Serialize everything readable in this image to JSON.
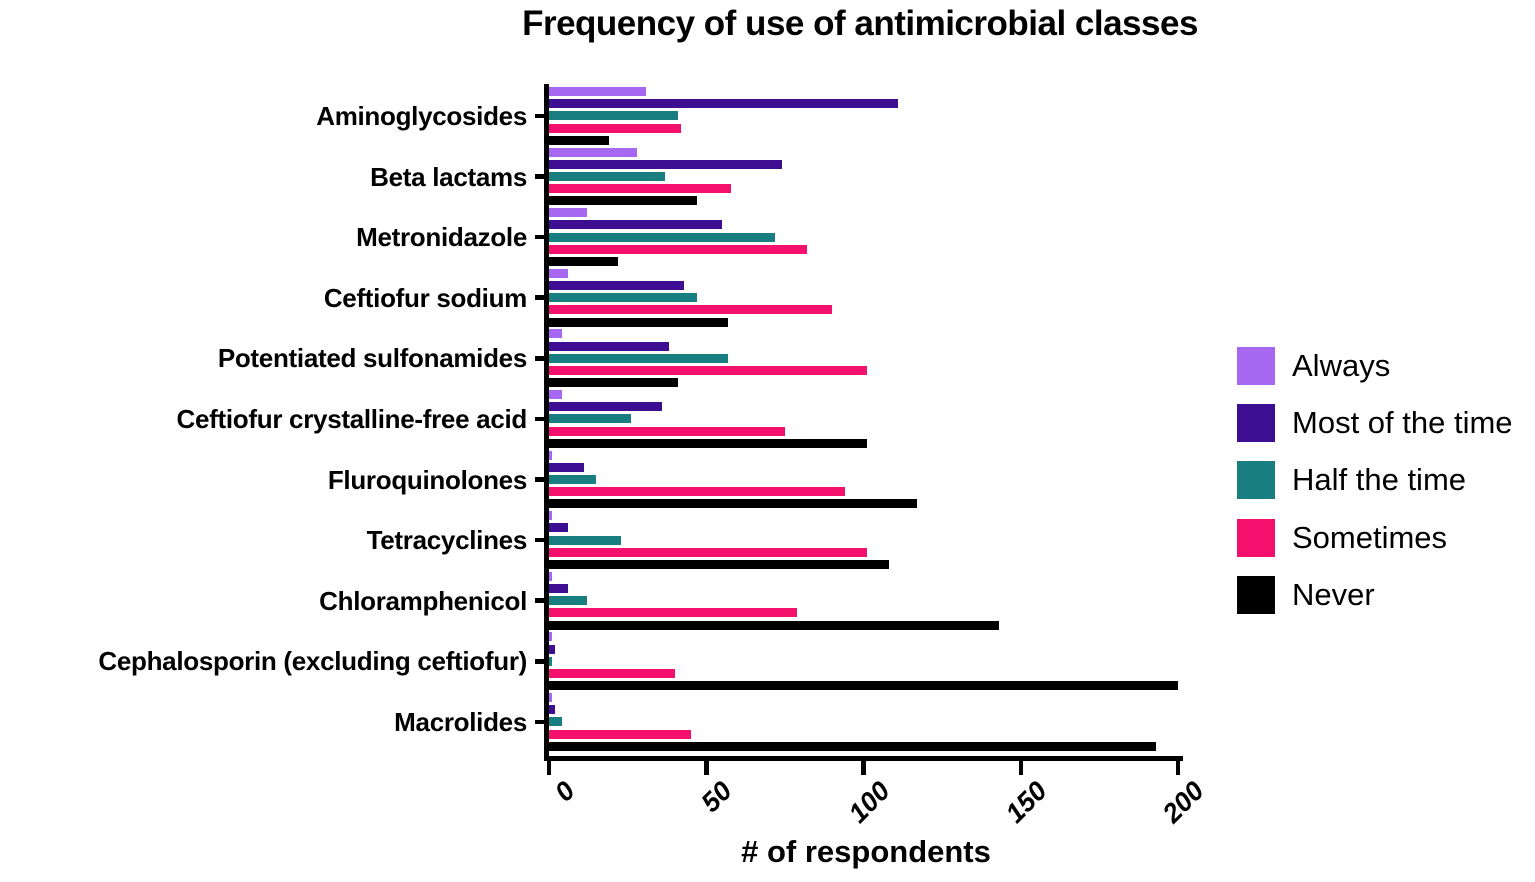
{
  "title": "Frequency of use of antimicrobial classes",
  "chart_data": {
    "type": "bar",
    "orientation": "horizontal",
    "title": "Frequency of use of antimicrobial classes",
    "xlabel": "# of respondents",
    "ylabel": "",
    "xlim": [
      0,
      200
    ],
    "xticks": [
      "0",
      "50",
      "100",
      "150",
      "200"
    ],
    "xtick_values": [
      0,
      50,
      100,
      150,
      200
    ],
    "grid": false,
    "legend_position": "right",
    "axis_color": "#000000",
    "categories": [
      "Aminoglycosides",
      "Beta lactams",
      "Metronidazole",
      "Ceftiofur sodium",
      "Potentiated sulfonamides",
      "Ceftiofur crystalline-free acid",
      "Fluroquinolones",
      "Tetracyclines",
      "Chloramphenicol",
      "Cephalosporin (excluding ceftiofur)",
      "Macrolides"
    ],
    "series": [
      {
        "name": "Always",
        "color": "#A668F0",
        "values": [
          31,
          28,
          12,
          6,
          4,
          4,
          1,
          1,
          1,
          1,
          1
        ]
      },
      {
        "name": "Most of the time",
        "color": "#3D0E91",
        "values": [
          111,
          74,
          55,
          43,
          38,
          36,
          11,
          6,
          6,
          2,
          2
        ]
      },
      {
        "name": "Half the time",
        "color": "#187E80",
        "values": [
          41,
          37,
          72,
          47,
          57,
          26,
          15,
          23,
          12,
          1,
          4
        ]
      },
      {
        "name": "Sometimes",
        "color": "#F4116D",
        "values": [
          42,
          58,
          82,
          90,
          101,
          75,
          94,
          101,
          79,
          40,
          45
        ]
      },
      {
        "name": "Never",
        "color": "#000000",
        "values": [
          19,
          47,
          22,
          57,
          41,
          101,
          117,
          108,
          143,
          200,
          193
        ]
      }
    ]
  }
}
